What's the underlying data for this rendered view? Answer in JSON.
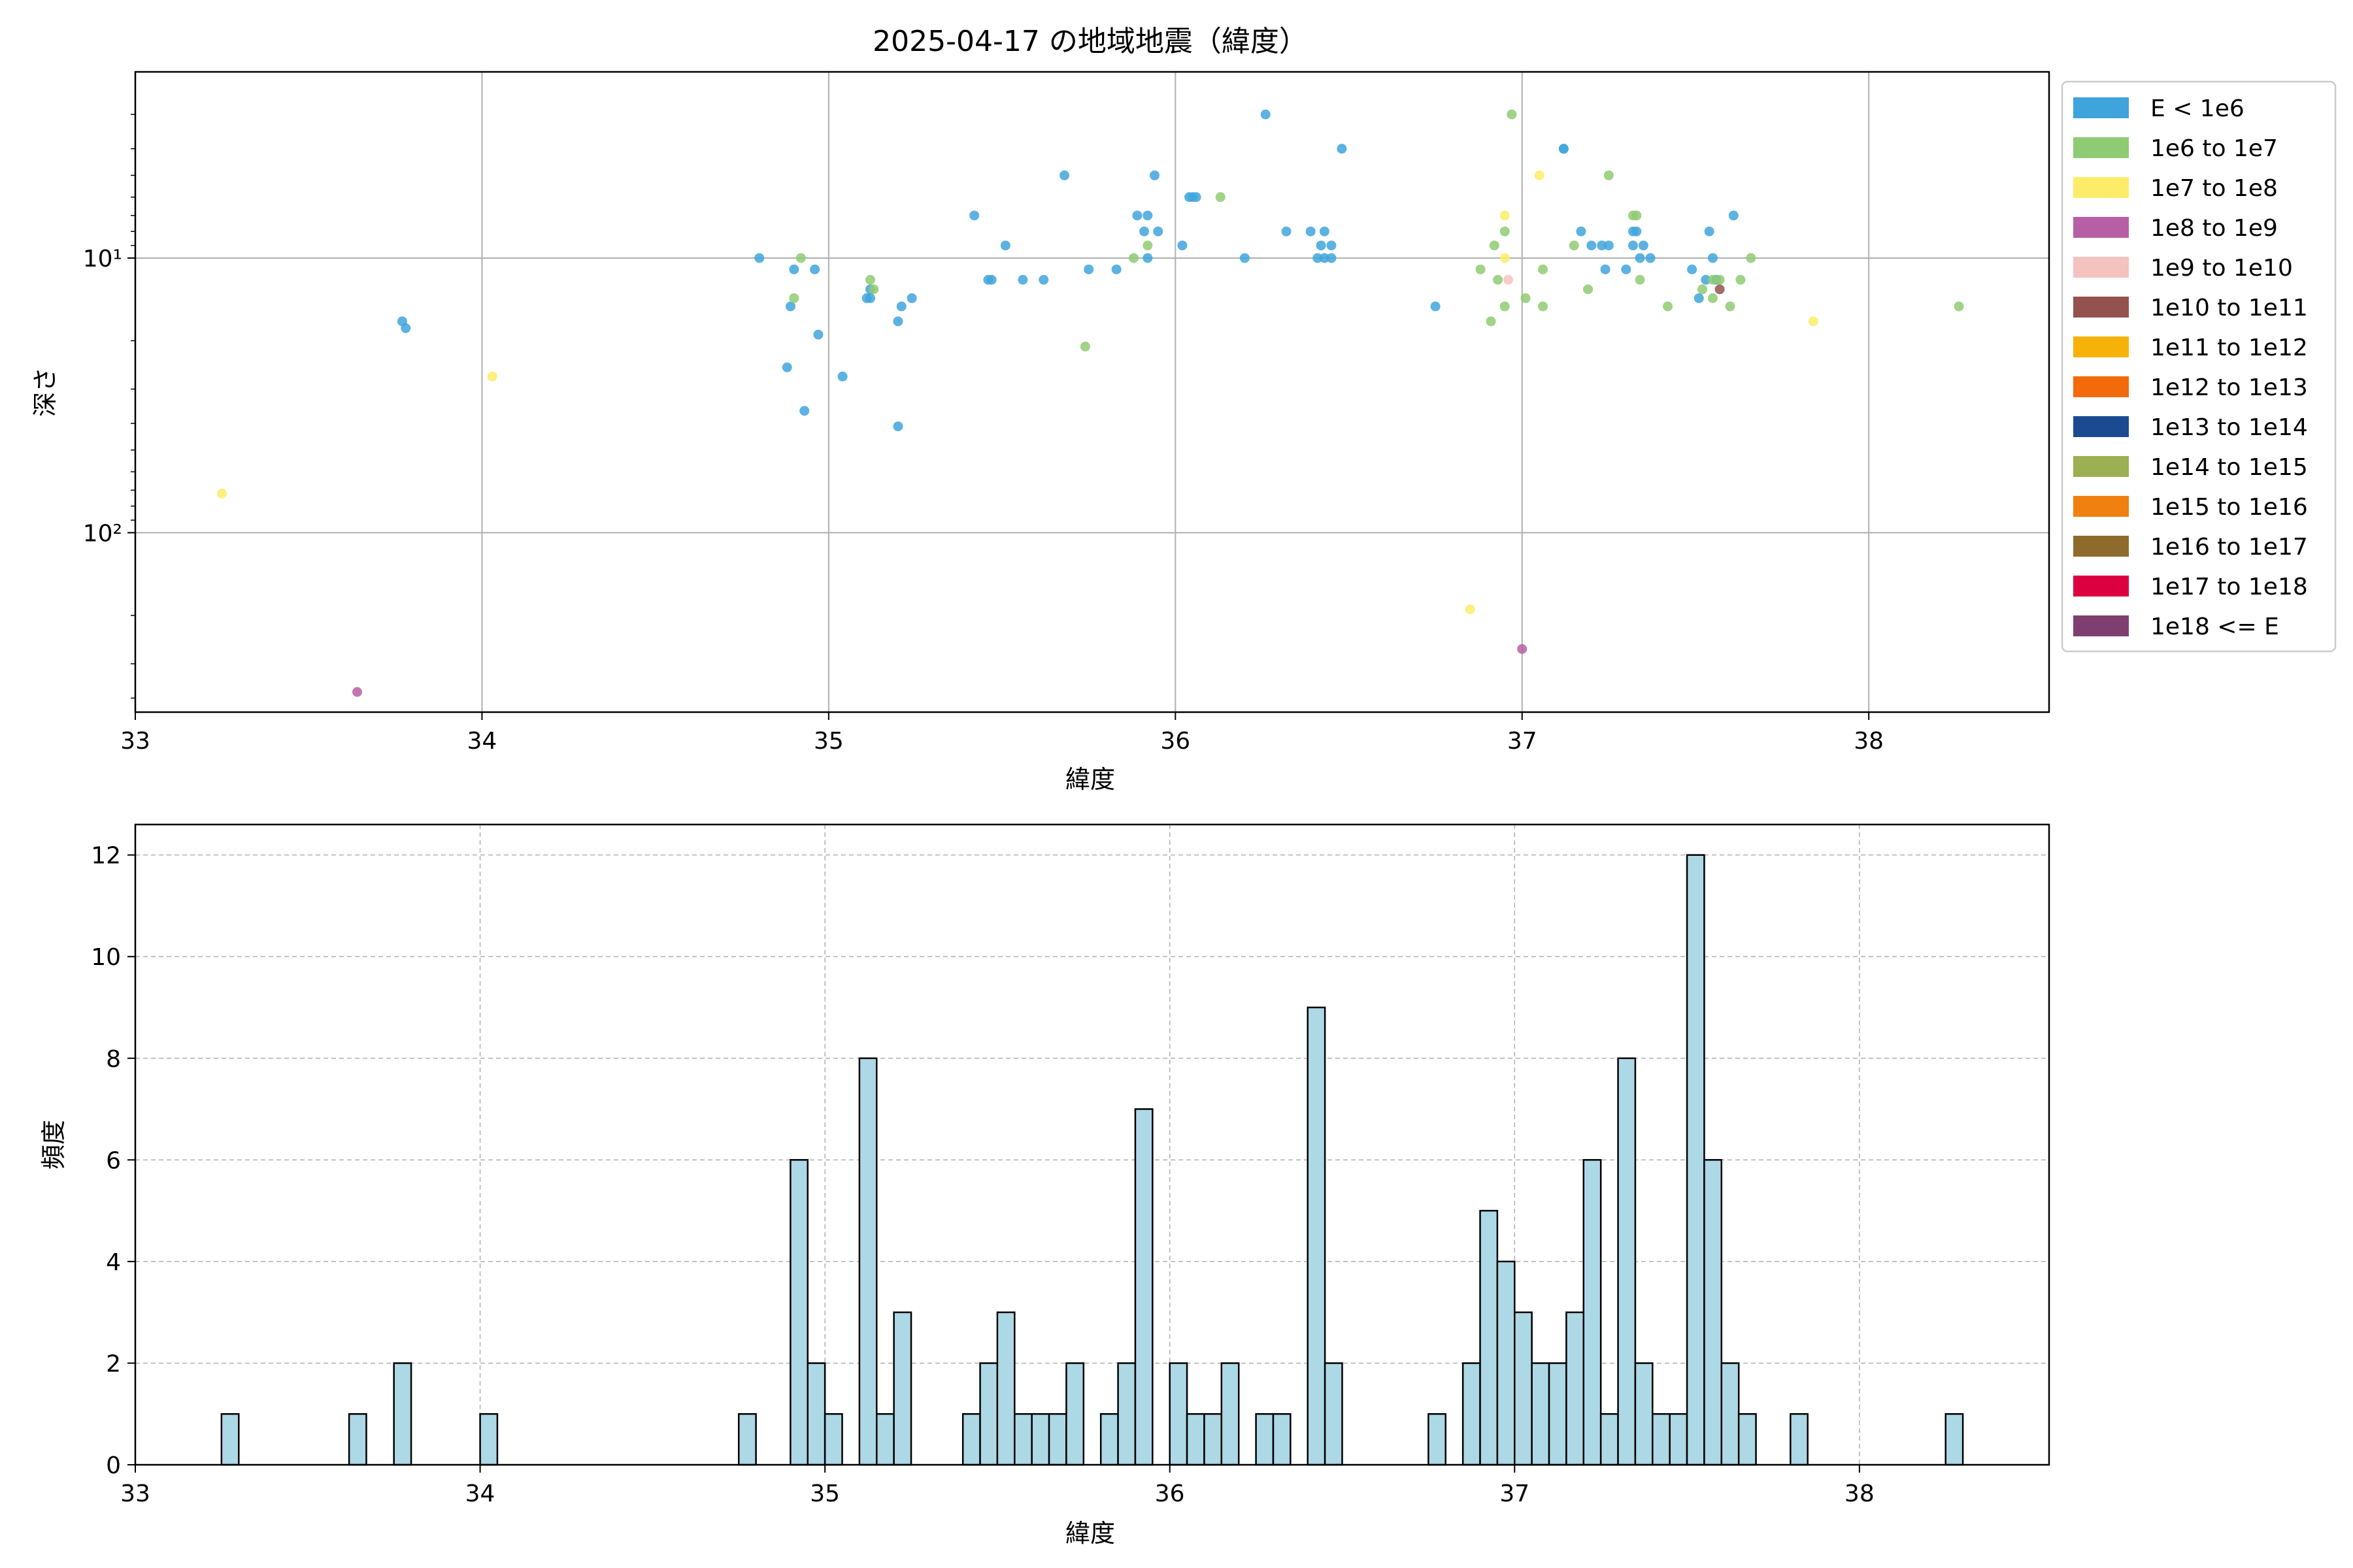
{
  "colors": {
    "scatter_series": [
      "#3fa4dc",
      "#8fcb72",
      "#fdec6a",
      "#b75fa6",
      "#f4c2bf",
      "#93524e",
      "#f7b20a",
      "#f26a0a",
      "#1b4a91",
      "#9caf53",
      "#f08010",
      "#8e6a2c",
      "#dc0040",
      "#7e3f70"
    ],
    "hist_fill": "#add8e6",
    "hist_edge": "#000000",
    "grid": "#b0b0b0"
  },
  "chart_data": [
    {
      "type": "scatter",
      "title": "2025-04-17 の地域地震（緯度）",
      "xlabel": "緯度",
      "ylabel": "深さ",
      "xlim": [
        33,
        38.52
      ],
      "ylim": [
        450,
        2.1
      ],
      "y_scale": "log",
      "y_inverted": true,
      "grid": true,
      "legend_position": "outside-right",
      "x_tick_labels": [
        "33",
        "34",
        "35",
        "36",
        "37",
        "38"
      ],
      "x_ticks": [
        33,
        34,
        35,
        36,
        37,
        38
      ],
      "y_tick_labels": [
        "10¹",
        "10²"
      ],
      "y_ticks": [
        10,
        100
      ],
      "series": [
        {
          "name": "E < 1e6",
          "points": [
            [
              33.77,
              17
            ],
            [
              33.78,
              18
            ],
            [
              34.8,
              10
            ],
            [
              34.88,
              25
            ],
            [
              34.89,
              15
            ],
            [
              34.9,
              11
            ],
            [
              34.93,
              36
            ],
            [
              34.96,
              11
            ],
            [
              34.97,
              19
            ],
            [
              35.04,
              27
            ],
            [
              35.11,
              14
            ],
            [
              35.12,
              14
            ],
            [
              35.12,
              13
            ],
            [
              35.2,
              41
            ],
            [
              35.2,
              17
            ],
            [
              35.21,
              15
            ],
            [
              35.24,
              14
            ],
            [
              35.42,
              7
            ],
            [
              35.46,
              12
            ],
            [
              35.47,
              12
            ],
            [
              35.51,
              9
            ],
            [
              35.56,
              12
            ],
            [
              35.62,
              12
            ],
            [
              35.68,
              5
            ],
            [
              35.75,
              11
            ],
            [
              35.83,
              11
            ],
            [
              35.89,
              7
            ],
            [
              35.91,
              8
            ],
            [
              35.92,
              7
            ],
            [
              35.92,
              10
            ],
            [
              35.94,
              5
            ],
            [
              35.95,
              8
            ],
            [
              36.02,
              9
            ],
            [
              36.04,
              6
            ],
            [
              36.05,
              6
            ],
            [
              36.06,
              6
            ],
            [
              36.2,
              10
            ],
            [
              36.26,
              3
            ],
            [
              36.32,
              8
            ],
            [
              36.39,
              8
            ],
            [
              36.41,
              10
            ],
            [
              36.42,
              9
            ],
            [
              36.43,
              10
            ],
            [
              36.43,
              8
            ],
            [
              36.45,
              10
            ],
            [
              36.45,
              9
            ],
            [
              36.48,
              4
            ],
            [
              36.75,
              15
            ],
            [
              37.12,
              4
            ],
            [
              37.12,
              4
            ],
            [
              37.17,
              8
            ],
            [
              37.2,
              9
            ],
            [
              37.23,
              9
            ],
            [
              37.24,
              11
            ],
            [
              37.25,
              9
            ],
            [
              37.3,
              11
            ],
            [
              37.32,
              9
            ],
            [
              37.32,
              8
            ],
            [
              37.33,
              8
            ],
            [
              37.34,
              10
            ],
            [
              37.35,
              9
            ],
            [
              37.37,
              10
            ],
            [
              37.49,
              11
            ],
            [
              37.51,
              14
            ],
            [
              37.53,
              12
            ],
            [
              37.54,
              8
            ],
            [
              37.55,
              10
            ],
            [
              37.56,
              12
            ],
            [
              37.61,
              7
            ]
          ]
        },
        {
          "name": "1e6 to 1e7",
          "points": [
            [
              34.9,
              14
            ],
            [
              34.92,
              10
            ],
            [
              35.12,
              12
            ],
            [
              35.13,
              13
            ],
            [
              35.74,
              21
            ],
            [
              35.88,
              10
            ],
            [
              35.92,
              9
            ],
            [
              36.13,
              6
            ],
            [
              36.88,
              11
            ],
            [
              36.91,
              17
            ],
            [
              36.92,
              9
            ],
            [
              36.93,
              12
            ],
            [
              36.95,
              15
            ],
            [
              36.95,
              8
            ],
            [
              36.97,
              3
            ],
            [
              37.01,
              14
            ],
            [
              37.06,
              11
            ],
            [
              37.06,
              15
            ],
            [
              37.15,
              9
            ],
            [
              37.19,
              13
            ],
            [
              37.25,
              5
            ],
            [
              37.32,
              7
            ],
            [
              37.33,
              7
            ],
            [
              37.34,
              12
            ],
            [
              37.42,
              15
            ],
            [
              37.52,
              13
            ],
            [
              37.55,
              14
            ],
            [
              37.55,
              12
            ],
            [
              37.57,
              12
            ],
            [
              37.6,
              15
            ],
            [
              37.63,
              12
            ],
            [
              37.66,
              10
            ],
            [
              38.26,
              15
            ]
          ]
        },
        {
          "name": "1e7 to 1e8",
          "points": [
            [
              33.25,
              72
            ],
            [
              34.03,
              27
            ],
            [
              36.85,
              190
            ],
            [
              36.95,
              10
            ],
            [
              36.95,
              7
            ],
            [
              37.05,
              5
            ],
            [
              37.84,
              17
            ]
          ]
        },
        {
          "name": "1e8 to 1e9",
          "points": [
            [
              33.64,
              380
            ],
            [
              37.0,
              265
            ]
          ]
        },
        {
          "name": "1e9 to 1e10",
          "points": [
            [
              36.96,
              12
            ]
          ]
        },
        {
          "name": "1e10 to 1e11",
          "points": [
            [
              37.57,
              13
            ]
          ]
        },
        {
          "name": "1e11 to 1e12",
          "points": []
        },
        {
          "name": "1e12 to 1e13",
          "points": []
        },
        {
          "name": "1e13 to 1e14",
          "points": []
        },
        {
          "name": "1e14 to 1e15",
          "points": []
        },
        {
          "name": "1e15 to 1e16",
          "points": []
        },
        {
          "name": "1e16 to 1e17",
          "points": []
        },
        {
          "name": "1e17 to 1e18",
          "points": []
        },
        {
          "name": "1e18 <= E",
          "points": []
        }
      ]
    },
    {
      "type": "bar",
      "subtype": "histogram",
      "xlabel": "緯度",
      "ylabel": "頻度",
      "xlim": [
        33,
        38.55
      ],
      "ylim": [
        0,
        12.6
      ],
      "grid": true,
      "x_tick_labels": [
        "33",
        "34",
        "35",
        "36",
        "37",
        "38"
      ],
      "x_ticks": [
        33,
        34,
        35,
        36,
        37,
        38
      ],
      "y_tick_labels": [
        "0",
        "2",
        "4",
        "6",
        "8",
        "10",
        "12"
      ],
      "y_ticks": [
        0,
        2,
        4,
        6,
        8,
        10,
        12
      ],
      "bins": [
        [
          33.25,
          33.3,
          1
        ],
        [
          33.62,
          33.67,
          1
        ],
        [
          33.75,
          33.8,
          2
        ],
        [
          34.0,
          34.05,
          1
        ],
        [
          34.75,
          34.8,
          1
        ],
        [
          34.9,
          34.95,
          6
        ],
        [
          34.95,
          35.0,
          2
        ],
        [
          35.0,
          35.05,
          1
        ],
        [
          35.1,
          35.15,
          8
        ],
        [
          35.15,
          35.2,
          1
        ],
        [
          35.2,
          35.25,
          3
        ],
        [
          35.4,
          35.45,
          1
        ],
        [
          35.45,
          35.5,
          2
        ],
        [
          35.5,
          35.55,
          3
        ],
        [
          35.55,
          35.6,
          1
        ],
        [
          35.6,
          35.65,
          1
        ],
        [
          35.65,
          35.7,
          1
        ],
        [
          35.7,
          35.75,
          2
        ],
        [
          35.8,
          35.85,
          1
        ],
        [
          35.85,
          35.9,
          2
        ],
        [
          35.9,
          35.95,
          7
        ],
        [
          36.0,
          36.05,
          2
        ],
        [
          36.05,
          36.1,
          1
        ],
        [
          36.1,
          36.15,
          1
        ],
        [
          36.15,
          36.2,
          2
        ],
        [
          36.25,
          36.3,
          1
        ],
        [
          36.3,
          36.35,
          1
        ],
        [
          36.4,
          36.45,
          9
        ],
        [
          36.45,
          36.5,
          2
        ],
        [
          36.75,
          36.8,
          1
        ],
        [
          36.85,
          36.9,
          2
        ],
        [
          36.9,
          36.95,
          5
        ],
        [
          36.95,
          37.0,
          4
        ],
        [
          37.0,
          37.05,
          3
        ],
        [
          37.05,
          37.1,
          2
        ],
        [
          37.1,
          37.15,
          2
        ],
        [
          37.15,
          37.2,
          3
        ],
        [
          37.2,
          37.25,
          6
        ],
        [
          37.25,
          37.3,
          1
        ],
        [
          37.3,
          37.35,
          8
        ],
        [
          37.35,
          37.4,
          2
        ],
        [
          37.4,
          37.45,
          1
        ],
        [
          37.45,
          37.5,
          1
        ],
        [
          37.5,
          37.55,
          12
        ],
        [
          37.55,
          37.6,
          6
        ],
        [
          37.6,
          37.65,
          2
        ],
        [
          37.65,
          37.7,
          1
        ],
        [
          37.8,
          37.85,
          1
        ],
        [
          38.25,
          38.3,
          1
        ]
      ]
    }
  ]
}
